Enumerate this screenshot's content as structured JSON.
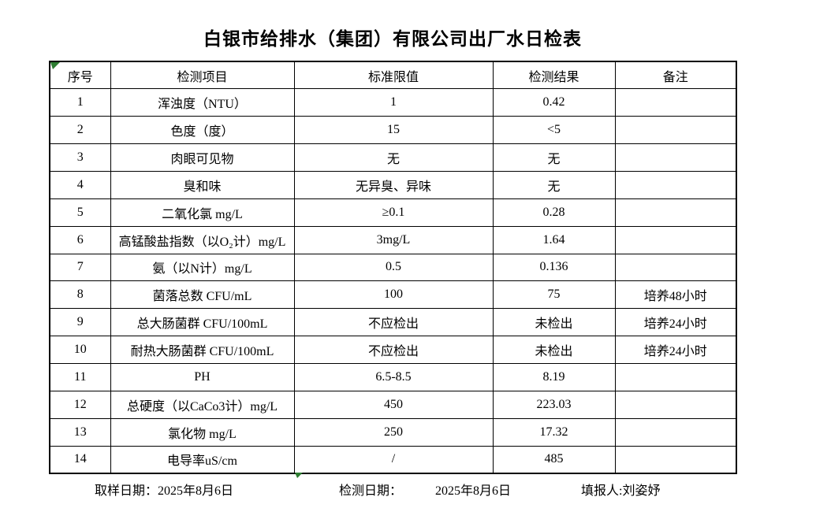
{
  "title": "白银市给排水（集团）有限公司出厂水日检表",
  "table": {
    "headers": [
      "序号",
      "检测项目",
      "标准限值",
      "检测结果",
      "备注"
    ],
    "rows": [
      {
        "no": "1",
        "item": "浑浊度（NTU）",
        "limit": "1",
        "result": "0.42",
        "remark": ""
      },
      {
        "no": "2",
        "item": "色度（度）",
        "limit": "15",
        "result": "<5",
        "remark": ""
      },
      {
        "no": "3",
        "item": "肉眼可见物",
        "limit": "无",
        "result": "无",
        "remark": ""
      },
      {
        "no": "4",
        "item": "臭和味",
        "limit": "无异臭、异味",
        "result": "无",
        "remark": ""
      },
      {
        "no": "5",
        "item": "二氧化氯 mg/L",
        "limit": "≥0.1",
        "result": "0.28",
        "remark": ""
      },
      {
        "no": "6",
        "item": "高锰酸盐指数（以O₂计）mg/L",
        "limit": "3mg/L",
        "result": "1.64",
        "remark": ""
      },
      {
        "no": "7",
        "item": "氨（以N计）mg/L",
        "limit": "0.5",
        "result": "0.136",
        "remark": ""
      },
      {
        "no": "8",
        "item": "菌落总数 CFU/mL",
        "limit": "100",
        "result": "75",
        "remark": "培养48小时"
      },
      {
        "no": "9",
        "item": "总大肠菌群 CFU/100mL",
        "limit": "不应检出",
        "result": "未检出",
        "remark": "培养24小时"
      },
      {
        "no": "10",
        "item": "耐热大肠菌群 CFU/100mL",
        "limit": "不应检出",
        "result": "未检出",
        "remark": "培养24小时"
      },
      {
        "no": "11",
        "item": "PH",
        "limit": "6.5-8.5",
        "result": "8.19",
        "remark": ""
      },
      {
        "no": "12",
        "item": "总硬度（以CaCo3计）mg/L",
        "limit": "450",
        "result": "223.03",
        "remark": ""
      },
      {
        "no": "13",
        "item": "氯化物 mg/L",
        "limit": "250",
        "result": "17.32",
        "remark": ""
      },
      {
        "no": "14",
        "item": "电导率uS/cm",
        "limit": "/",
        "result": "485",
        "remark": ""
      }
    ]
  },
  "footer": {
    "sample_date": "取样日期：2025年8月6日",
    "test_date_label": "检测日期：",
    "test_date": "2025年8月6日",
    "reporter": "填报人:刘姿妤"
  },
  "colors": {
    "marker_green": "#2e7d32",
    "border_black": "#000000"
  }
}
